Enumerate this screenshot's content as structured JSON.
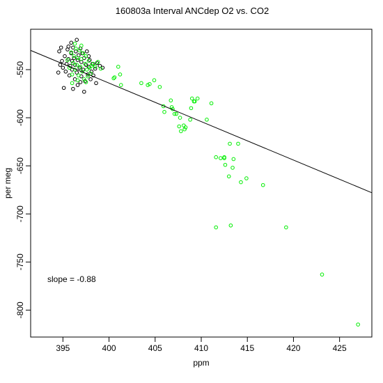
{
  "chart_data": {
    "type": "scatter",
    "title": "160803a   Interval ANCdep O2 vs. CO2",
    "xlabel": "ppm",
    "ylabel": "per meg",
    "xlim": [
      391.5,
      428.5
    ],
    "ylim": [
      -828,
      -508
    ],
    "xticks": [
      395,
      400,
      405,
      410,
      415,
      420,
      425
    ],
    "yticks": [
      -550,
      -600,
      -650,
      -700,
      -750,
      -800
    ],
    "grid": false,
    "annotation": "slope =  -0.88",
    "fit_line": {
      "x": [
        391.5,
        428.5
      ],
      "y": [
        -530,
        -678
      ]
    },
    "series": [
      {
        "color": "#000000",
        "points": [
          [
            394.6,
            -531
          ],
          [
            394.9,
            -541
          ],
          [
            395.0,
            -548
          ],
          [
            395.2,
            -536
          ],
          [
            395.3,
            -552
          ],
          [
            395.4,
            -544
          ],
          [
            395.5,
            -529
          ],
          [
            395.6,
            -539
          ],
          [
            395.7,
            -556
          ],
          [
            395.8,
            -546
          ],
          [
            395.9,
            -533
          ],
          [
            396.0,
            -550
          ],
          [
            396.0,
            -541
          ],
          [
            396.1,
            -527
          ],
          [
            396.2,
            -538
          ],
          [
            396.3,
            -560
          ],
          [
            396.3,
            -545
          ],
          [
            396.4,
            -531
          ],
          [
            396.5,
            -553
          ],
          [
            396.6,
            -540
          ],
          [
            396.6,
            -566
          ],
          [
            396.7,
            -535
          ],
          [
            396.8,
            -548
          ],
          [
            396.9,
            -528
          ],
          [
            397.0,
            -542
          ],
          [
            397.0,
            -557
          ],
          [
            397.1,
            -533
          ],
          [
            397.2,
            -550
          ],
          [
            397.3,
            -538
          ],
          [
            397.4,
            -562
          ],
          [
            397.5,
            -545
          ],
          [
            397.6,
            -531
          ],
          [
            397.7,
            -555
          ],
          [
            397.8,
            -547
          ],
          [
            397.9,
            -540
          ],
          [
            398.0,
            -560
          ],
          [
            398.1,
            -552
          ],
          [
            398.2,
            -544
          ],
          [
            398.3,
            -556
          ],
          [
            398.5,
            -549
          ],
          [
            398.7,
            -543
          ],
          [
            399.0,
            -546
          ],
          [
            399.3,
            -548
          ],
          [
            394.5,
            -553
          ],
          [
            395.1,
            -569
          ],
          [
            396.5,
            -519
          ],
          [
            397.3,
            -573
          ],
          [
            398.6,
            -564
          ],
          [
            394.8,
            -527
          ],
          [
            396.9,
            -563
          ],
          [
            395.6,
            -526
          ],
          [
            397.8,
            -536
          ],
          [
            396.1,
            -570
          ],
          [
            394.7,
            -545
          ],
          [
            395.9,
            -522
          ]
        ]
      },
      {
        "color": "#00ee00",
        "points": [
          [
            395.5,
            -540
          ],
          [
            395.7,
            -548
          ],
          [
            395.9,
            -532
          ],
          [
            396.0,
            -555
          ],
          [
            396.1,
            -543
          ],
          [
            396.2,
            -536
          ],
          [
            396.3,
            -550
          ],
          [
            396.4,
            -528
          ],
          [
            396.5,
            -545
          ],
          [
            396.6,
            -538
          ],
          [
            396.7,
            -556
          ],
          [
            396.8,
            -530
          ],
          [
            396.9,
            -547
          ],
          [
            397.0,
            -539
          ],
          [
            397.1,
            -552
          ],
          [
            397.2,
            -533
          ],
          [
            397.3,
            -560
          ],
          [
            397.4,
            -544
          ],
          [
            397.5,
            -536
          ],
          [
            397.6,
            -550
          ],
          [
            397.7,
            -557
          ],
          [
            397.8,
            -541
          ],
          [
            397.9,
            -548
          ],
          [
            398.0,
            -554
          ],
          [
            398.1,
            -546
          ],
          [
            398.3,
            -544
          ],
          [
            398.5,
            -547
          ],
          [
            398.8,
            -542
          ],
          [
            399.1,
            -549
          ],
          [
            396.3,
            -523
          ],
          [
            396.6,
            -561
          ],
          [
            397.0,
            -525
          ],
          [
            397.5,
            -563
          ],
          [
            396.0,
            -564
          ],
          [
            400.5,
            -559
          ],
          [
            400.6,
            -558
          ],
          [
            401.0,
            -547
          ],
          [
            401.2,
            -555
          ],
          [
            401.3,
            -566
          ],
          [
            403.5,
            -564
          ],
          [
            404.2,
            -566
          ],
          [
            404.4,
            -565
          ],
          [
            404.9,
            -561
          ],
          [
            405.5,
            -568
          ],
          [
            405.9,
            -588
          ],
          [
            406.0,
            -594
          ],
          [
            406.7,
            -582
          ],
          [
            406.8,
            -589
          ],
          [
            406.9,
            -591
          ],
          [
            407.1,
            -596
          ],
          [
            407.3,
            -596
          ],
          [
            407.6,
            -609
          ],
          [
            407.7,
            -600
          ],
          [
            407.8,
            -614
          ],
          [
            408.1,
            -608
          ],
          [
            408.2,
            -612
          ],
          [
            408.3,
            -610
          ],
          [
            408.8,
            -602
          ],
          [
            408.9,
            -590
          ],
          [
            409.0,
            -580
          ],
          [
            409.2,
            -583
          ],
          [
            409.3,
            -583
          ],
          [
            409.6,
            -580
          ],
          [
            410.6,
            -602
          ],
          [
            411.1,
            -585
          ],
          [
            411.6,
            -641
          ],
          [
            411.6,
            -714
          ],
          [
            412.1,
            -642
          ],
          [
            412.5,
            -642
          ],
          [
            412.5,
            -641
          ],
          [
            412.6,
            -649
          ],
          [
            413.0,
            -661
          ],
          [
            413.1,
            -627
          ],
          [
            413.2,
            -712
          ],
          [
            413.4,
            -652
          ],
          [
            413.5,
            -643
          ],
          [
            414.0,
            -627
          ],
          [
            414.3,
            -667
          ],
          [
            414.9,
            -663
          ],
          [
            416.7,
            -670
          ],
          [
            419.2,
            -714
          ],
          [
            423.1,
            -763
          ],
          [
            427.0,
            -815
          ]
        ]
      }
    ]
  }
}
